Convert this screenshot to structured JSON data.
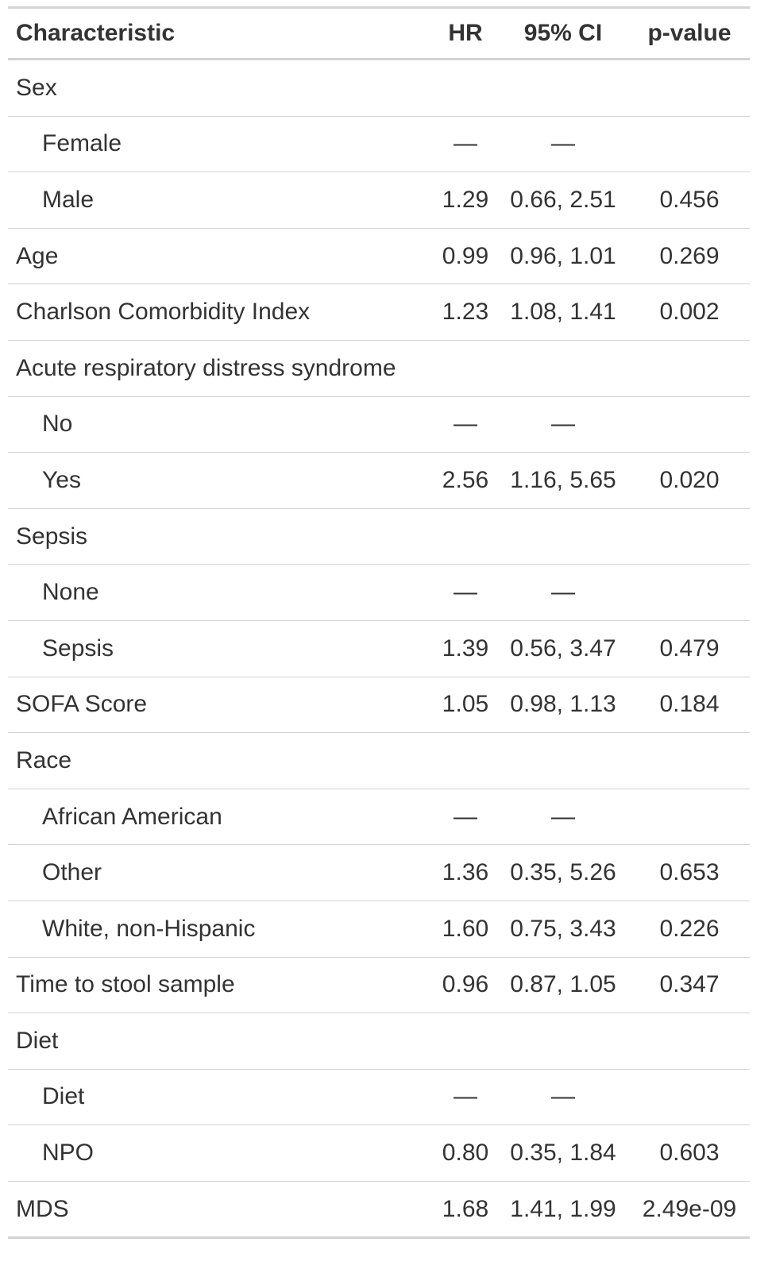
{
  "header": {
    "characteristic": "Characteristic",
    "hr": "HR",
    "ci": "95% CI",
    "p": "p-value"
  },
  "rows": [
    {
      "label": "Sex",
      "indent": false,
      "hr": "",
      "ci": "",
      "p": ""
    },
    {
      "label": "Female",
      "indent": true,
      "hr": "—",
      "ci": "—",
      "p": ""
    },
    {
      "label": "Male",
      "indent": true,
      "hr": "1.29",
      "ci": "0.66, 2.51",
      "p": "0.456"
    },
    {
      "label": "Age",
      "indent": false,
      "hr": "0.99",
      "ci": "0.96, 1.01",
      "p": "0.269"
    },
    {
      "label": "Charlson Comorbidity Index",
      "indent": false,
      "hr": "1.23",
      "ci": "1.08, 1.41",
      "p": "0.002"
    },
    {
      "label": "Acute respiratory distress syndrome",
      "indent": false,
      "hr": "",
      "ci": "",
      "p": ""
    },
    {
      "label": "No",
      "indent": true,
      "hr": "—",
      "ci": "—",
      "p": ""
    },
    {
      "label": "Yes",
      "indent": true,
      "hr": "2.56",
      "ci": "1.16, 5.65",
      "p": "0.020"
    },
    {
      "label": "Sepsis",
      "indent": false,
      "hr": "",
      "ci": "",
      "p": ""
    },
    {
      "label": "None",
      "indent": true,
      "hr": "—",
      "ci": "—",
      "p": ""
    },
    {
      "label": "Sepsis",
      "indent": true,
      "hr": "1.39",
      "ci": "0.56, 3.47",
      "p": "0.479"
    },
    {
      "label": "SOFA Score",
      "indent": false,
      "hr": "1.05",
      "ci": "0.98, 1.13",
      "p": "0.184"
    },
    {
      "label": "Race",
      "indent": false,
      "hr": "",
      "ci": "",
      "p": ""
    },
    {
      "label": "African American",
      "indent": true,
      "hr": "—",
      "ci": "—",
      "p": ""
    },
    {
      "label": "Other",
      "indent": true,
      "hr": "1.36",
      "ci": "0.35, 5.26",
      "p": "0.653"
    },
    {
      "label": "White, non-Hispanic",
      "indent": true,
      "hr": "1.60",
      "ci": "0.75, 3.43",
      "p": "0.226"
    },
    {
      "label": "Time to stool sample",
      "indent": false,
      "hr": "0.96",
      "ci": "0.87, 1.05",
      "p": "0.347"
    },
    {
      "label": "Diet",
      "indent": false,
      "hr": "",
      "ci": "",
      "p": ""
    },
    {
      "label": "Diet",
      "indent": true,
      "hr": "—",
      "ci": "—",
      "p": ""
    },
    {
      "label": "NPO",
      "indent": true,
      "hr": "0.80",
      "ci": "0.35, 1.84",
      "p": "0.603"
    },
    {
      "label": "MDS",
      "indent": false,
      "hr": "1.68",
      "ci": "1.41, 1.99",
      "p": "2.49e-09"
    }
  ]
}
